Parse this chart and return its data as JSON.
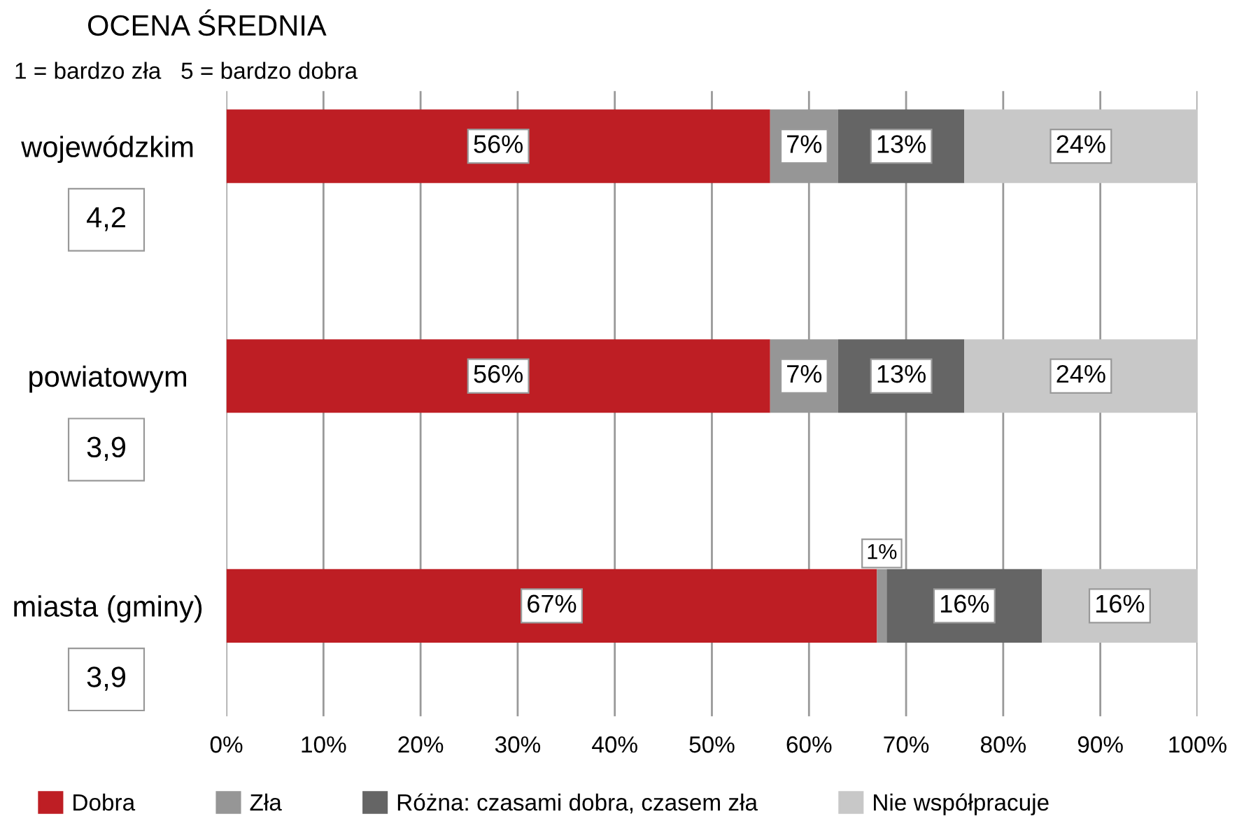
{
  "chart_data": {
    "type": "bar",
    "orientation": "horizontal",
    "stacked": true,
    "title": "OCENA ŚREDNIA",
    "subtitle": "1 = bardzo zła   5 = bardzo dobra",
    "categories": [
      "wojewódzkim",
      "powiatowym",
      "miasta (gminy)"
    ],
    "series": [
      {
        "name": "Dobra",
        "color": "#be1e24",
        "values": [
          56,
          56,
          67
        ],
        "value_labels": [
          "56%",
          "56%",
          "67%"
        ]
      },
      {
        "name": "Zła",
        "color": "#969696",
        "values": [
          7,
          7,
          1
        ],
        "value_labels": [
          "7%",
          "7%",
          "1%"
        ]
      },
      {
        "name": "Różna: czasami dobra, czasem zła",
        "color": "#656565",
        "values": [
          13,
          13,
          16
        ],
        "value_labels": [
          "13%",
          "13%",
          "16%"
        ]
      },
      {
        "name": "Nie współpracuje",
        "color": "#c8c8c8",
        "values": [
          24,
          24,
          16
        ],
        "value_labels": [
          "24%",
          "24%",
          "16%"
        ]
      }
    ],
    "annotations": [
      "4,2",
      "3,9",
      "3,9"
    ],
    "xlim": [
      0,
      100
    ],
    "xticks": [
      {
        "value": 0,
        "label": "0%"
      },
      {
        "value": 10,
        "label": "10%"
      },
      {
        "value": 20,
        "label": "20%"
      },
      {
        "value": 30,
        "label": "30%"
      },
      {
        "value": 40,
        "label": "40%"
      },
      {
        "value": 50,
        "label": "50%"
      },
      {
        "value": 60,
        "label": "60%"
      },
      {
        "value": 70,
        "label": "70%"
      },
      {
        "value": 80,
        "label": "80%"
      },
      {
        "value": 90,
        "label": "90%"
      },
      {
        "value": 100,
        "label": "100%"
      }
    ],
    "grid": "x",
    "legend": "bottom"
  }
}
